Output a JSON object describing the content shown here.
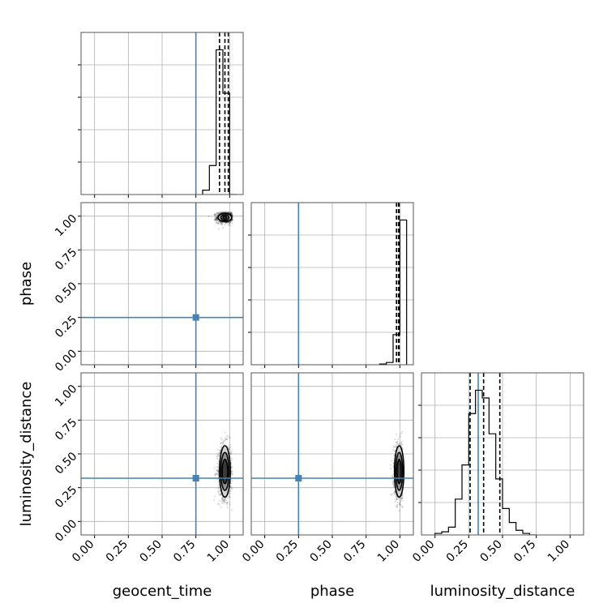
{
  "chart_data": {
    "type": "corner",
    "parameters": [
      "geocent_time",
      "phase",
      "luminosity_distance"
    ],
    "axis_range": [
      -0.1,
      1.1
    ],
    "ticks": [
      0.0,
      0.25,
      0.5,
      0.75,
      1.0
    ],
    "tick_labels": [
      "0.00",
      "0.25",
      "0.50",
      "0.75",
      "1.00"
    ],
    "grid": true,
    "colors": {
      "truth": "#4682b4",
      "hist": "#000000",
      "quantile": "#000000",
      "points": "#000000"
    },
    "truths": {
      "geocent_time": 0.75,
      "phase": 0.25,
      "luminosity_distance": 0.32
    },
    "quantiles": {
      "geocent_time": [
        0.925,
        0.965,
        0.99
      ],
      "phase": [
        0.975,
        0.99,
        0.995
      ],
      "luminosity_distance": [
        0.26,
        0.36,
        0.48
      ]
    },
    "histograms": [
      {
        "parameter": "geocent_time",
        "bin_edges": [
          0.8,
          0.85,
          0.9,
          0.95,
          1.0,
          1.05
        ],
        "counts": [
          0.03,
          0.2,
          1.0,
          0.7,
          0.0
        ]
      },
      {
        "parameter": "phase",
        "bin_edges": [
          0.85,
          0.9,
          0.95,
          1.0,
          1.05
        ],
        "counts": [
          0.005,
          0.015,
          0.2,
          0.96
        ]
      },
      {
        "parameter": "luminosity_distance",
        "bin_edges": [
          0.0,
          0.05,
          0.1,
          0.15,
          0.2,
          0.25,
          0.3,
          0.35,
          0.4,
          0.45,
          0.5,
          0.55,
          0.6,
          0.65,
          0.7,
          0.75
        ],
        "counts": [
          0.01,
          0.02,
          0.05,
          0.23,
          0.45,
          0.78,
          0.93,
          0.88,
          0.65,
          0.36,
          0.17,
          0.08,
          0.03,
          0.01,
          0.0
        ]
      }
    ],
    "scatter_2d": [
      {
        "x": "geocent_time",
        "y": "phase",
        "center": [
          0.965,
          0.99
        ],
        "spread": [
          0.03,
          0.02
        ],
        "contours": [
          [
            0.05,
            0.03
          ],
          [
            0.03,
            0.02
          ],
          [
            0.015,
            0.01
          ]
        ]
      },
      {
        "x": "geocent_time",
        "y": "luminosity_distance",
        "center": [
          0.965,
          0.37
        ],
        "spread": [
          0.025,
          0.1
        ],
        "contours": [
          [
            0.04,
            0.19
          ],
          [
            0.03,
            0.14
          ],
          [
            0.02,
            0.09
          ]
        ]
      },
      {
        "x": "phase",
        "y": "luminosity_distance",
        "center": [
          0.995,
          0.37
        ],
        "spread": [
          0.02,
          0.1
        ],
        "contours": [
          [
            0.035,
            0.19
          ],
          [
            0.025,
            0.14
          ],
          [
            0.015,
            0.09
          ]
        ]
      }
    ]
  }
}
